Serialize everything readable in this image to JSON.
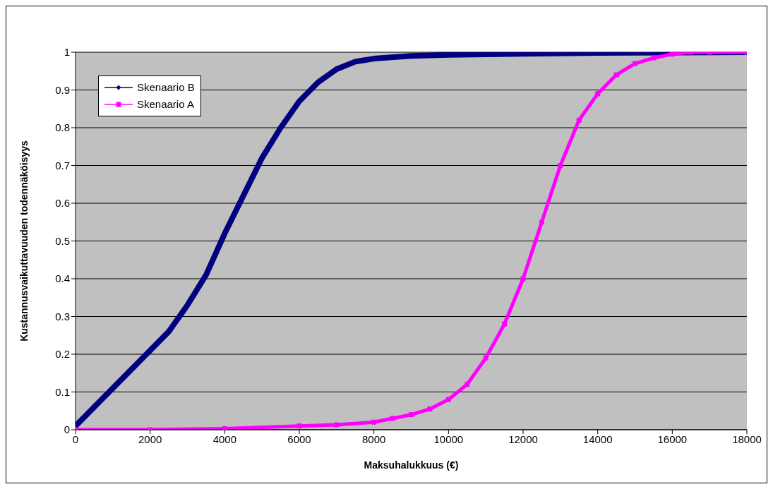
{
  "chart_data": {
    "type": "line",
    "xlabel": "Maksuhalukkuus (€)",
    "ylabel": "Kustannusvaikuttavuuden todennäköisyys",
    "xlim": [
      0,
      18000
    ],
    "xticks": [
      0,
      2000,
      4000,
      6000,
      8000,
      10000,
      12000,
      14000,
      16000,
      18000
    ],
    "ylim": [
      0,
      1
    ],
    "yticks": [
      0,
      0.1,
      0.2,
      0.3,
      0.4,
      0.5,
      0.6,
      0.7,
      0.8,
      0.9,
      1
    ],
    "grid": "y",
    "legend": "top left",
    "line_style": "solid",
    "series": [
      {
        "name": "Skenaario B",
        "color": "#000080",
        "marker": "diamond",
        "x": [
          0,
          500,
          1000,
          1500,
          2000,
          2500,
          3000,
          3500,
          4000,
          4500,
          5000,
          5500,
          6000,
          6500,
          7000,
          7500,
          8000,
          9000,
          10000,
          12000,
          14000,
          16000,
          18000
        ],
        "values": [
          0.01,
          0.06,
          0.11,
          0.16,
          0.21,
          0.26,
          0.33,
          0.41,
          0.52,
          0.62,
          0.72,
          0.8,
          0.87,
          0.92,
          0.955,
          0.975,
          0.983,
          0.99,
          0.993,
          0.996,
          0.998,
          0.999,
          1.0
        ]
      },
      {
        "name": "Skenaario A",
        "color": "#ff00ff",
        "marker": "square",
        "x": [
          0,
          2000,
          4000,
          6000,
          7000,
          8000,
          8500,
          9000,
          9500,
          10000,
          10500,
          11000,
          11500,
          12000,
          12500,
          13000,
          13500,
          14000,
          14500,
          15000,
          15500,
          16000,
          16500,
          17000,
          18000
        ],
        "values": [
          0,
          0,
          0.003,
          0.01,
          0.013,
          0.02,
          0.03,
          0.04,
          0.055,
          0.08,
          0.12,
          0.19,
          0.28,
          0.4,
          0.55,
          0.7,
          0.82,
          0.89,
          0.94,
          0.97,
          0.985,
          0.995,
          1.0,
          1.0,
          1.0
        ]
      }
    ]
  }
}
